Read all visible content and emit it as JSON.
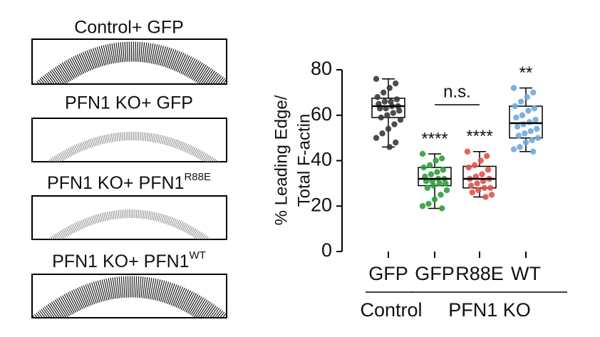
{
  "panels": [
    {
      "title": "Control+ GFP"
    },
    {
      "title": "PFN1 KO+ GFP"
    },
    {
      "title": "PFN1 KO+ PFN1",
      "superscript": "R88E"
    },
    {
      "title": "PFN1 KO+ PFN1",
      "superscript": "WT"
    }
  ],
  "chart_data": {
    "type": "box",
    "ylabel": [
      "% Leading Edge/",
      "Total F-actin"
    ],
    "ylim": [
      0,
      80
    ],
    "yticks": [
      0,
      20,
      40,
      60,
      80
    ],
    "categories": [
      "GFP",
      "GFP",
      "R88E",
      "WT"
    ],
    "groups": [
      {
        "label": "Control",
        "count": 1
      },
      {
        "label": "PFN1 KO",
        "count": 3
      }
    ],
    "boxes": [
      {
        "color": "#3a3a3a",
        "whislo": 46,
        "q1": 59,
        "med": 64,
        "q3": 67.5,
        "whishi": 76,
        "annotation": null,
        "points": [
          76,
          74,
          72,
          70,
          68,
          67,
          66,
          66,
          65,
          64,
          64,
          63,
          63,
          62,
          61,
          60,
          59,
          58,
          56,
          54,
          52,
          50,
          48,
          46
        ]
      },
      {
        "color": "#2e9e3a",
        "whislo": 19,
        "q1": 29,
        "med": 32,
        "q3": 37,
        "whishi": 43,
        "annotation": "****",
        "points": [
          43,
          41,
          40,
          38,
          37,
          36,
          35,
          34,
          33,
          32,
          32,
          31,
          31,
          30,
          30,
          29,
          28,
          27,
          25,
          23,
          21,
          20,
          19
        ]
      },
      {
        "color": "#e2524a",
        "whislo": 24,
        "q1": 28,
        "med": 32,
        "q3": 37.5,
        "whishi": 44,
        "annotation": "****",
        "points": [
          44,
          42,
          40,
          38,
          37,
          36,
          34,
          33,
          32,
          32,
          31,
          30,
          29,
          28,
          28,
          27,
          26,
          25,
          24
        ]
      },
      {
        "color": "#6fa8dc",
        "whislo": 44,
        "q1": 50,
        "med": 56.5,
        "q3": 64,
        "whishi": 72,
        "annotation": "**",
        "points": [
          72,
          70,
          68,
          66,
          64,
          63,
          62,
          60,
          59,
          58,
          57,
          56,
          55,
          54,
          53,
          52,
          51,
          50,
          49,
          48,
          46,
          45,
          44
        ]
      }
    ],
    "comparisons": [
      {
        "label": "n.s.",
        "between": [
          1,
          2
        ]
      }
    ]
  }
}
